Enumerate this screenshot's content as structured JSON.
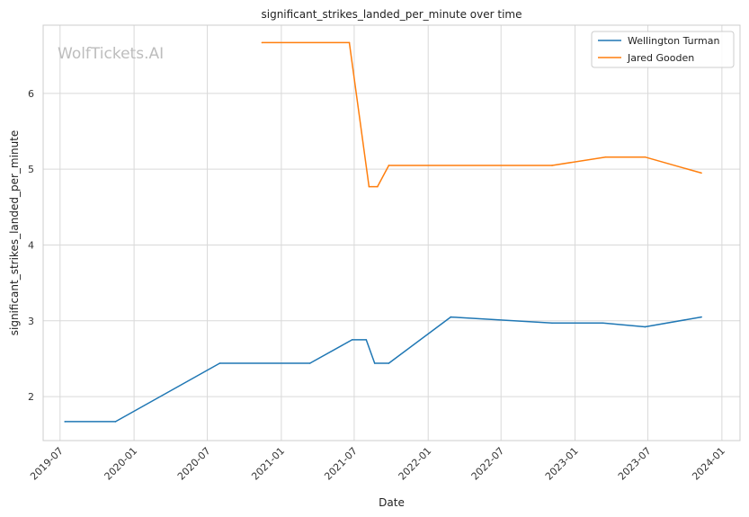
{
  "chart_data": {
    "type": "line",
    "title": "significant_strikes_landed_per_minute over time",
    "xlabel": "Date",
    "ylabel": "significant_strikes_landed_per_minute",
    "watermark": "WolfTickets.AI",
    "x_ticks": [
      "2019-07",
      "2020-01",
      "2020-07",
      "2021-01",
      "2021-07",
      "2022-01",
      "2022-07",
      "2023-01",
      "2023-07",
      "2024-01"
    ],
    "y_ticks": [
      2,
      3,
      4,
      5,
      6
    ],
    "xlim": [
      "2019-05-20",
      "2024-02-15"
    ],
    "ylim": [
      1.42,
      6.9
    ],
    "grid": true,
    "legend_position": "top-right",
    "series": [
      {
        "name": "Wellington Turman",
        "color": "#1f77b4",
        "points": [
          {
            "x": "2019-07-13",
            "y": 1.67
          },
          {
            "x": "2019-11-16",
            "y": 1.67
          },
          {
            "x": "2020-08-01",
            "y": 2.44
          },
          {
            "x": "2021-03-13",
            "y": 2.44
          },
          {
            "x": "2021-06-26",
            "y": 2.75
          },
          {
            "x": "2021-07-31",
            "y": 2.75
          },
          {
            "x": "2021-08-21",
            "y": 2.44
          },
          {
            "x": "2021-09-25",
            "y": 2.44
          },
          {
            "x": "2022-02-26",
            "y": 3.05
          },
          {
            "x": "2022-11-05",
            "y": 2.97
          },
          {
            "x": "2023-03-11",
            "y": 2.97
          },
          {
            "x": "2023-06-24",
            "y": 2.92
          },
          {
            "x": "2023-11-11",
            "y": 3.05
          }
        ]
      },
      {
        "name": "Jared Gooden",
        "color": "#ff7f0e",
        "points": [
          {
            "x": "2020-11-14",
            "y": 6.67
          },
          {
            "x": "2021-06-19",
            "y": 6.67
          },
          {
            "x": "2021-08-07",
            "y": 4.77
          },
          {
            "x": "2021-08-28",
            "y": 4.77
          },
          {
            "x": "2021-09-25",
            "y": 5.05
          },
          {
            "x": "2022-11-05",
            "y": 5.05
          },
          {
            "x": "2023-03-18",
            "y": 5.16
          },
          {
            "x": "2023-06-24",
            "y": 5.16
          },
          {
            "x": "2023-11-11",
            "y": 4.95
          }
        ]
      }
    ]
  }
}
